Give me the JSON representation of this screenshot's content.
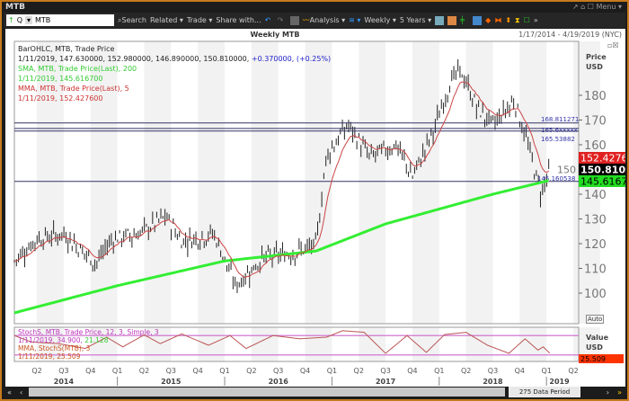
{
  "window": {
    "title": "MTB",
    "menu_label": "Menu"
  },
  "toolbar": {
    "symbol_type": "Q",
    "symbol": "MTB",
    "search": "Search",
    "related": "Related",
    "trade": "Trade",
    "share": "Share with...",
    "analysis": "Analysis",
    "interval": "Weekly",
    "range": "5 Years"
  },
  "chart": {
    "title": "Weekly MTB",
    "date_range": "1/17/2014 - 4/19/2019 (NYC)",
    "axis_title": "Price\nUSD",
    "axis_mode": "Auto",
    "lower_axis_title": "Value\nUSD",
    "legend": {
      "ohlc_label": "BarOHLC, MTB, Trade Price",
      "ohlc_values": "1/11/2019, 147.630000, 152.980000, 146.890000, 150.810000,",
      "ohlc_change": "+0.370000, (+0.25%)",
      "sma_label": "SMA, MTB, Trade Price(Last), 200",
      "sma_value": "1/11/2019, 145.616700",
      "mma_label": "MMA, MTB, Trade Price(Last), 5",
      "mma_value": "1/11/2019, 152.427600",
      "stoch_label": "StochS, MTB, Trade Price, 12, 3, Simple, 3",
      "stoch_value": "1/11/2019, 34.900,",
      "stoch_value2": "21.128",
      "smma_label": "MMA, StochS(MTB), 3",
      "smma_value": "1/11/2019, 25.509"
    },
    "hlines": [
      "168.811271",
      "165.6xxxxx",
      "165.53882",
      "145.160538"
    ],
    "badges": {
      "mma": "152.4276",
      "last": "150.8100",
      "sma": "145.6167",
      "stoch": "25.509"
    },
    "colors": {
      "mma": "#e02020",
      "last": "#000000",
      "sma": "#22dd22",
      "stoch": "#ff3300"
    },
    "period_label": "275 Data Period"
  },
  "chart_data": {
    "type": "bar",
    "subtype": "ohlc-weekly",
    "xlim": [
      "2014-01-17",
      "2019-04-19"
    ],
    "ylim": [
      92,
      196
    ],
    "y_ticks": [
      100,
      110,
      120,
      130,
      140,
      150,
      160,
      170,
      180
    ],
    "x_quarter_ticks": [
      "Q2",
      "Q3",
      "Q4",
      "Q1",
      "Q2",
      "Q3",
      "Q4",
      "Q1",
      "Q2",
      "Q3",
      "Q4",
      "Q1",
      "Q2",
      "Q3",
      "Q4",
      "Q1",
      "Q2",
      "Q3",
      "Q4",
      "Q1",
      "Q2"
    ],
    "x_years": [
      "2014",
      "2015",
      "2016",
      "2017",
      "2018",
      "2019"
    ],
    "price_path": [
      [
        2014.04,
        113
      ],
      [
        2014.25,
        122
      ],
      [
        2014.5,
        124
      ],
      [
        2014.8,
        112
      ],
      [
        2014.95,
        122
      ],
      [
        2015.2,
        124
      ],
      [
        2015.45,
        131
      ],
      [
        2015.6,
        121
      ],
      [
        2015.9,
        124
      ],
      [
        2016.1,
        103
      ],
      [
        2016.35,
        114
      ],
      [
        2016.6,
        116
      ],
      [
        2016.85,
        119
      ],
      [
        2016.95,
        156
      ],
      [
        2017.15,
        168
      ],
      [
        2017.35,
        155
      ],
      [
        2017.6,
        160
      ],
      [
        2017.75,
        147
      ],
      [
        2017.95,
        166
      ],
      [
        2018.1,
        185
      ],
      [
        2018.2,
        190
      ],
      [
        2018.35,
        175
      ],
      [
        2018.5,
        168
      ],
      [
        2018.7,
        178
      ],
      [
        2018.8,
        164
      ],
      [
        2018.95,
        140
      ],
      [
        2019.03,
        150.81
      ]
    ],
    "sma200": [
      [
        2014.04,
        92
      ],
      [
        2015.0,
        103
      ],
      [
        2016.0,
        113
      ],
      [
        2016.85,
        117
      ],
      [
        2017.5,
        128
      ],
      [
        2018.5,
        140
      ],
      [
        2019.03,
        145.62
      ]
    ],
    "stoch": [
      [
        2014.04,
        80
      ],
      [
        2014.2,
        60
      ],
      [
        2014.45,
        55
      ],
      [
        2014.7,
        40
      ],
      [
        2014.9,
        75
      ],
      [
        2015.05,
        45
      ],
      [
        2015.25,
        82
      ],
      [
        2015.4,
        55
      ],
      [
        2015.6,
        85
      ],
      [
        2015.85,
        50
      ],
      [
        2016.05,
        80
      ],
      [
        2016.2,
        40
      ],
      [
        2016.45,
        80
      ],
      [
        2016.7,
        70
      ],
      [
        2016.95,
        75
      ],
      [
        2017.1,
        95
      ],
      [
        2017.3,
        90
      ],
      [
        2017.5,
        25
      ],
      [
        2017.7,
        80
      ],
      [
        2017.88,
        28
      ],
      [
        2018.05,
        83
      ],
      [
        2018.25,
        90
      ],
      [
        2018.45,
        50
      ],
      [
        2018.65,
        25
      ],
      [
        2018.8,
        70
      ],
      [
        2018.92,
        35
      ],
      [
        2018.97,
        45
      ],
      [
        2019.03,
        25.5
      ]
    ],
    "stoch_levels": [
      80,
      20
    ]
  }
}
